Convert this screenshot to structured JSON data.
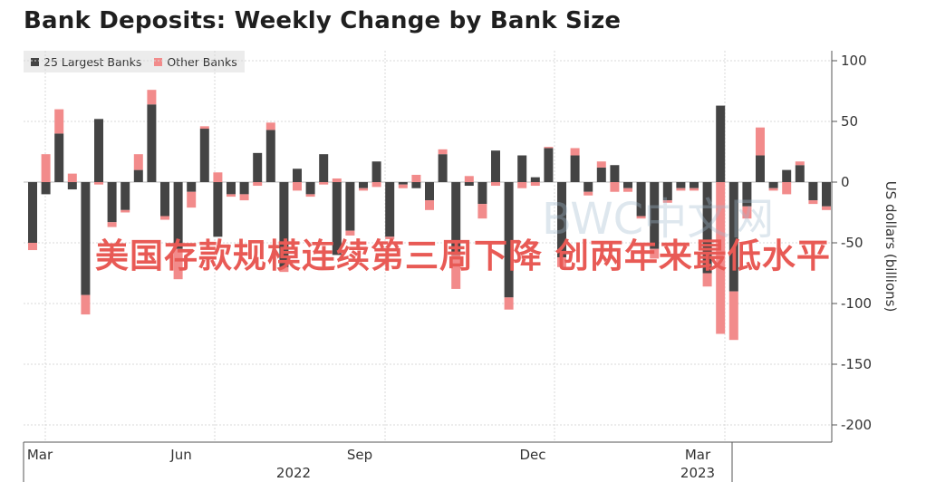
{
  "chart_data": {
    "type": "bar",
    "stacked": true,
    "title": "Bank Deposits: Weekly Change by Bank Size",
    "ylabel": "US dollars (billions)",
    "ylim": [
      -200,
      100
    ],
    "yticks": [
      100,
      50,
      0,
      -50,
      -100,
      -150,
      -200
    ],
    "x_tick_labels": [
      "Mar",
      "Jun",
      "Sep",
      "Dec",
      "Mar"
    ],
    "x_year_labels": [
      "2022",
      "2023"
    ],
    "legend_position": "top-left",
    "grid": true,
    "series": [
      {
        "name": "25 Largest Banks",
        "color": "#444444",
        "values": [
          -50,
          -10,
          40,
          -6,
          -93,
          52,
          -33,
          -23,
          10,
          64,
          -28,
          -55,
          -8,
          44,
          -45,
          -10,
          -10,
          24,
          43,
          -70,
          11,
          -10,
          23,
          -60,
          -40,
          -5,
          17,
          -45,
          -2,
          -5,
          -15,
          23,
          -60,
          -3,
          -18,
          26,
          -95,
          22,
          4,
          28,
          -62,
          22,
          -8,
          12,
          14,
          -5,
          -28,
          -55,
          -15,
          -5,
          -5,
          -75,
          63,
          -90,
          -20,
          22,
          -5,
          10,
          14,
          -15,
          -20
        ]
      },
      {
        "name": "Other Banks",
        "color": "#f28b8b",
        "values": [
          -6,
          23,
          20,
          7,
          -16,
          -2,
          -4,
          -2,
          13,
          12,
          -3,
          -25,
          -13,
          2,
          8,
          -2,
          -5,
          -3,
          6,
          -4,
          -7,
          -2,
          -2,
          3,
          -4,
          -2,
          -4,
          -2,
          -3,
          6,
          -8,
          4,
          -28,
          5,
          -12,
          -3,
          -10,
          -5,
          -3,
          1,
          -8,
          6,
          -3,
          5,
          -8,
          -3,
          -2,
          -8,
          -2,
          -2,
          -2,
          -11,
          -125,
          -40,
          -10,
          23,
          -2,
          -10,
          3,
          -3,
          -3
        ]
      }
    ]
  },
  "banner_text": "美国存款规模连续第三周下降 创两年来最低水平",
  "watermark_text": "BWC中文网"
}
